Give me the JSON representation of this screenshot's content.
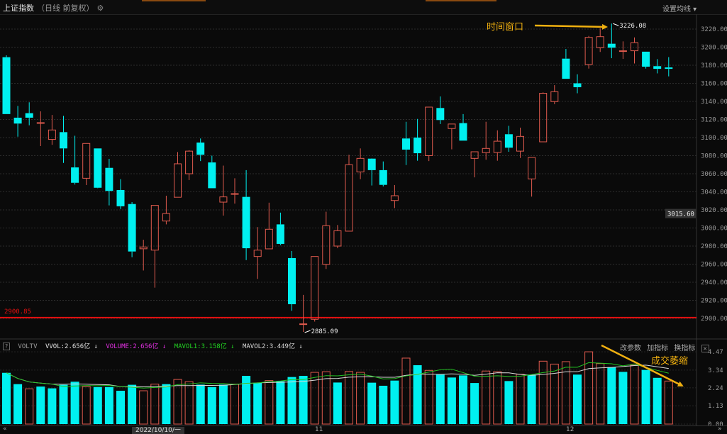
{
  "header": {
    "title": "上证指数",
    "subtitle": "（日线 前复权）",
    "gear_icon": "gear-icon",
    "ma_settings_label": "设置均线 ▾"
  },
  "volume_panel": {
    "help_label": "?",
    "indicator_name": "VOLTV",
    "vvol": "VVOL:2.656亿 ↓",
    "volume": "VOLUME:2.656亿 ↓",
    "mavol1": "MAVOL1:3.158亿 ↓",
    "mavol2": "MAVOL2:3.449亿 ↓",
    "btn_params": "改参数",
    "btn_add": "加指标",
    "btn_switch": "换指标",
    "close_label": "×"
  },
  "bottom": {
    "scroll_left": "«",
    "scroll_right": "»",
    "date_label": "2022/10/10/一",
    "month_11": "11",
    "month_12": "12"
  },
  "annotations": {
    "time_window": "时间窗口",
    "volume_shrink": "成交萎缩",
    "max_label": "3226.08",
    "min_label": "2885.09",
    "hline_label": "2900.85",
    "hline_value": 2900.85,
    "cursor_price": "3015.60",
    "cursor_value": 3015.6
  },
  "colors": {
    "up": "#e05a4e",
    "down": "#00f0f0",
    "background": "#0a0a0a",
    "hline": "#e81010",
    "annotation": "#f0b010",
    "mavol1": "#22c322",
    "mavol2": "#d8d8d8",
    "volume_label": "#e030e0"
  },
  "chart_data": [
    {
      "type": "candlestick",
      "title": "",
      "price_axis": {
        "ylim": [
          2880,
          3235
        ],
        "ticks": [
          "3220.00",
          "3200.00",
          "3180.00",
          "3160.00",
          "3140.00",
          "3120.00",
          "3100.00",
          "3080.00",
          "3060.00",
          "3040.00",
          "3020.00",
          "3000.00",
          "2980.00",
          "2960.00",
          "2940.00",
          "2920.00",
          "2900.00"
        ]
      },
      "x_tick_labels": [
        {
          "index": 13,
          "label": "2022/10/10/一"
        },
        {
          "index": 27,
          "label": "11"
        },
        {
          "index": 49,
          "label": "12"
        }
      ],
      "grid": true,
      "ohlc": [
        [
          3188.9,
          3191,
          3126,
          3126
        ],
        [
          3122,
          3135,
          3101,
          3115.5
        ],
        [
          3127,
          3139,
          3113.6,
          3122
        ],
        [
          3116,
          3129,
          3090.6,
          3116.5
        ],
        [
          3098,
          3125,
          3092,
          3108.4
        ],
        [
          3106,
          3124,
          3072,
          3088
        ],
        [
          3067,
          3102,
          3048,
          3050
        ],
        [
          3055,
          3093.5,
          3047.5,
          3093.5
        ],
        [
          3088,
          3088,
          3044,
          3044.5
        ],
        [
          3066.5,
          3076.5,
          3025,
          3041
        ],
        [
          3042,
          3054,
          3021,
          3024
        ],
        [
          3026.5,
          3028.6,
          2967.7,
          2974
        ],
        [
          2977,
          2987,
          2953,
          2979
        ],
        [
          2975.5,
          3025,
          2934,
          3025
        ],
        [
          3007.7,
          3035.7,
          3004,
          3016
        ],
        [
          3034,
          3084,
          3034,
          3071
        ],
        [
          3060,
          3086,
          3053,
          3085
        ],
        [
          3094.5,
          3099,
          3074,
          3081
        ],
        [
          3072.5,
          3080,
          3044,
          3044
        ],
        [
          3028.6,
          3069,
          3013.7,
          3034.4
        ],
        [
          3037.5,
          3055,
          3027,
          3038
        ],
        [
          3034.4,
          3064,
          2964.5,
          2977.6
        ],
        [
          2968.5,
          3001,
          2943.7,
          2975.5
        ],
        [
          2976.9,
          3028,
          2976.9,
          2998.6
        ],
        [
          3004,
          3017,
          2981,
          2982.4
        ],
        [
          2966.7,
          2974.5,
          2908.4,
          2915.7
        ],
        [
          2893.5,
          2926,
          2885.09,
          2894
        ],
        [
          2899,
          2968.5,
          2896.5,
          2968.5
        ],
        [
          2959.8,
          3018,
          2954.7,
          3002.5
        ],
        [
          2980,
          3003.3,
          2977.6,
          2997
        ],
        [
          2996.5,
          3081,
          2996.5,
          3070
        ],
        [
          3062,
          3088,
          3054,
          3077
        ],
        [
          3076.7,
          3077,
          3047,
          3064
        ],
        [
          3064,
          3073.6,
          3046,
          3047.7
        ],
        [
          3030.4,
          3047.5,
          3022,
          3035.7
        ],
        [
          3099,
          3117.5,
          3069.6,
          3086.7
        ],
        [
          3100,
          3120.6,
          3074.4,
          3082.7
        ],
        [
          3080,
          3134,
          3074,
          3133.7
        ],
        [
          3132.7,
          3145.5,
          3115,
          3119.4
        ],
        [
          3110,
          3115,
          3087,
          3115
        ],
        [
          3116,
          3126,
          3096.6,
          3096.6
        ],
        [
          3077,
          3084.3,
          3056,
          3084.3
        ],
        [
          3083.3,
          3117.5,
          3075.5,
          3088
        ],
        [
          3083.5,
          3108,
          3074.4,
          3096
        ],
        [
          3103.7,
          3113,
          3084.3,
          3088.8
        ],
        [
          3085,
          3111,
          3077.5,
          3101.3
        ],
        [
          3054.3,
          3078,
          3034.7,
          3078
        ],
        [
          3095.3,
          3150,
          3095,
          3149
        ],
        [
          3139.8,
          3158,
          3137,
          3150.7
        ],
        [
          3187.3,
          3198,
          3165,
          3165
        ],
        [
          3160,
          3170,
          3149,
          3155.7
        ],
        [
          3180.8,
          3212.4,
          3176.3,
          3210.8
        ],
        [
          3199.4,
          3220.8,
          3194.7,
          3211.6
        ],
        [
          3203.8,
          3226.08,
          3187.8,
          3199.4
        ],
        [
          3195.4,
          3206.4,
          3187,
          3196
        ],
        [
          3196,
          3210.8,
          3182,
          3205
        ],
        [
          3195,
          3195,
          3176.3,
          3178.4
        ],
        [
          3179,
          3186.8,
          3171,
          3176
        ],
        [
          3177.6,
          3189,
          3167.7,
          3176
        ]
      ]
    },
    {
      "type": "bar",
      "title": "",
      "ylabel": "亿",
      "ylim": [
        0,
        4.47
      ],
      "ticks": [
        "4.47",
        "3.34",
        "2.24",
        "1.13",
        "0.00"
      ],
      "series": [
        {
          "name": "VOLUME",
          "values": [
            3.17,
            2.47,
            2.18,
            2.32,
            2.21,
            2.43,
            2.62,
            2.32,
            2.29,
            2.29,
            2.06,
            2.43,
            2.06,
            2.47,
            2.47,
            2.76,
            2.62,
            2.44,
            2.29,
            2.44,
            2.47,
            2.98,
            2.54,
            2.69,
            2.65,
            2.91,
            2.98,
            3.2,
            3.24,
            2.57,
            3.25,
            3.2,
            2.56,
            2.37,
            2.69,
            4.08,
            3.64,
            3.32,
            3.06,
            2.88,
            3.01,
            2.54,
            3.28,
            3.24,
            2.66,
            3.08,
            3.06,
            3.89,
            3.71,
            3.86,
            3.06,
            4.47,
            3.74,
            3.52,
            3.23,
            3.64,
            3.35,
            2.86,
            2.66
          ]
        },
        {
          "name": "MAVOL1",
          "period": 5
        },
        {
          "name": "MAVOL2",
          "period": 10
        }
      ]
    }
  ]
}
